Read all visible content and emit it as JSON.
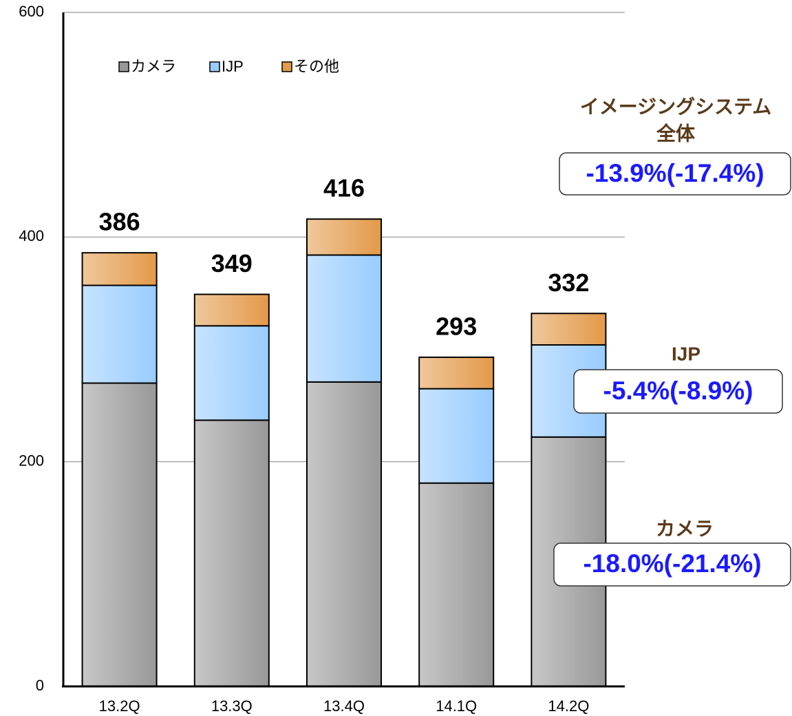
{
  "chart_data": {
    "type": "stacked_bar",
    "categories": [
      "13.2Q",
      "13.3Q",
      "13.4Q",
      "14.1Q",
      "14.2Q"
    ],
    "series": [
      {
        "name": "カメラ",
        "color": "#999999",
        "values": [
          270,
          237,
          271,
          181,
          222
        ]
      },
      {
        "name": "IJP",
        "color": "#99ccff",
        "values": [
          87,
          84,
          113,
          84,
          82
        ]
      },
      {
        "name": "その他",
        "color": "#e39a4a",
        "values": [
          29,
          28,
          32,
          28,
          28
        ]
      }
    ],
    "totals": [
      386,
      349,
      416,
      293,
      332
    ],
    "ylim": [
      0,
      600
    ],
    "yticks": [
      0,
      200,
      400,
      600
    ],
    "grid": true,
    "legend": "top-left",
    "annotations": [
      {
        "label": [
          "イメージングシステム",
          "全体"
        ],
        "text": "-13.9%(-17.4%)"
      },
      {
        "label": [
          "IJP"
        ],
        "text": "-5.4%(-8.9%)"
      },
      {
        "label": [
          "カメラ"
        ],
        "text": "-18.0%(-21.4%)"
      }
    ]
  }
}
